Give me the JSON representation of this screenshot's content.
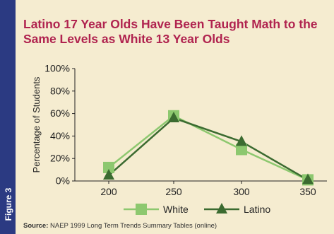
{
  "sidebar": {
    "label": "Figure 3"
  },
  "source": {
    "label": "Source:",
    "text": "NAEP 1999 Long Term Trends Summary Tables (online)"
  },
  "colors": {
    "sidebar": "#2b3a82",
    "title": "#b0234f",
    "background": "#f5ecd0",
    "white": "#8dc86f",
    "latino": "#3b6b30"
  },
  "chart_data": {
    "type": "line",
    "title": "Latino 17 Year Olds Have Been Taught Math to the Same Levels as White 13 Year Olds",
    "xlabel": "",
    "ylabel": "Percentage of Students",
    "x": [
      200,
      250,
      300,
      350
    ],
    "x_tick_labels": [
      "200",
      "250",
      "300",
      "350"
    ],
    "y_tick_labels": [
      "0%",
      "20%",
      "40%",
      "60%",
      "80%",
      "100%"
    ],
    "ylim": [
      0,
      100
    ],
    "grid": false,
    "legend": "bottom",
    "series": [
      {
        "name": "White",
        "values": [
          12,
          58,
          28,
          1
        ],
        "marker": "square"
      },
      {
        "name": "Latino",
        "values": [
          5,
          56,
          35,
          1
        ],
        "marker": "triangle"
      }
    ]
  }
}
